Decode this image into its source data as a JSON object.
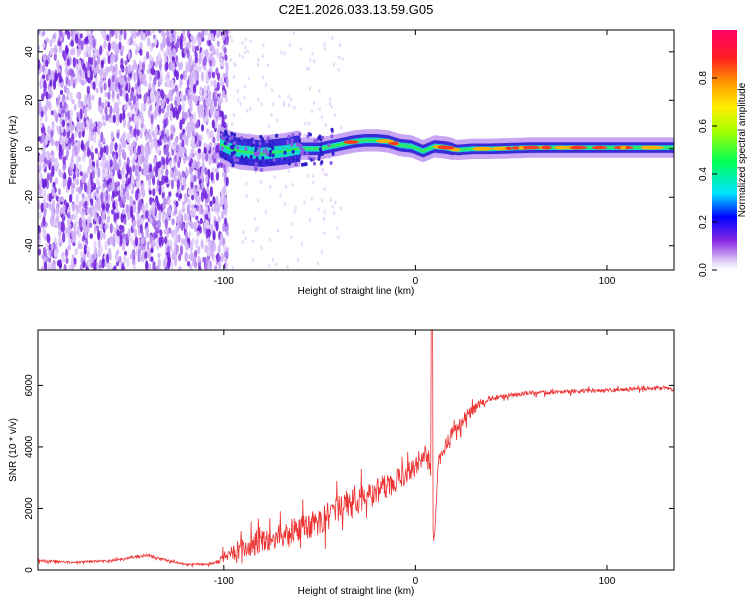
{
  "title": "C2E1.2026.033.13.59.G05",
  "chart_data": [
    {
      "type": "heatmap",
      "name": "spectrogram",
      "xlabel": "Height of straight line (km)",
      "ylabel": "Frequency (Hz)",
      "xlim": [
        -197,
        135
      ],
      "ylim": [
        -50,
        49
      ],
      "xticks": [
        -100,
        0,
        100
      ],
      "yticks": [
        -40,
        -20,
        0,
        20,
        40
      ],
      "ridge": {
        "x": [
          -102,
          -97,
          -92,
          -86,
          -80,
          -74,
          -68,
          -62,
          -56,
          -50,
          -44,
          -38,
          -32,
          -26,
          -20,
          -14,
          -8,
          -2,
          4,
          10,
          16,
          22,
          30,
          40,
          60,
          80,
          100,
          120,
          135
        ],
        "freq": [
          2,
          0,
          -1,
          -1.5,
          -2,
          -1.5,
          -1,
          0,
          0,
          0,
          1,
          2,
          3,
          3.5,
          3.5,
          3,
          1.5,
          1,
          -1,
          1,
          0.5,
          -0.5,
          0,
          0,
          0.5,
          0.5,
          0.5,
          0.5,
          0.5
        ]
      },
      "colorbar": {
        "label": "Normalized spectral amplitude",
        "range": [
          0,
          1
        ],
        "ticks": [
          "0.0",
          "0.2",
          "0.4",
          "0.6",
          "0.8"
        ],
        "tick_values": [
          0,
          0.2,
          0.4,
          0.6,
          0.8
        ]
      }
    },
    {
      "type": "line",
      "name": "snr",
      "xlabel": "Height of straight line (km)",
      "ylabel": "SNR (10 * v/v)",
      "xlim": [
        -197,
        135
      ],
      "ylim": [
        0,
        7800
      ],
      "xticks": [
        -100,
        0,
        100
      ],
      "yticks": [
        0,
        2000,
        4000,
        6000
      ],
      "color": "#ee3333",
      "series": [
        {
          "name": "SNR",
          "x": [
            -197,
            -180,
            -160,
            -140,
            -130,
            -120,
            -105,
            -100,
            -90,
            -80,
            -70,
            -60,
            -50,
            -40,
            -30,
            -20,
            -10,
            0,
            5,
            8,
            9,
            10,
            12,
            16,
            20,
            25,
            30,
            35,
            40,
            50,
            60,
            80,
            100,
            120,
            135
          ],
          "y": [
            300,
            250,
            300,
            480,
            320,
            180,
            200,
            420,
            700,
            950,
            1150,
            1350,
            1600,
            1950,
            2250,
            2550,
            2900,
            3350,
            3800,
            3200,
            1200,
            1100,
            3500,
            4100,
            4500,
            4900,
            5200,
            5450,
            5600,
            5700,
            5750,
            5800,
            5850,
            5900,
            5900
          ],
          "noise": [
            60,
            50,
            50,
            70,
            50,
            40,
            60,
            250,
            450,
            550,
            600,
            600,
            650,
            650,
            650,
            600,
            550,
            450,
            400,
            300,
            200,
            150,
            300,
            350,
            350,
            300,
            250,
            180,
            120,
            100,
            100,
            100,
            90,
            90,
            90
          ]
        }
      ]
    }
  ]
}
